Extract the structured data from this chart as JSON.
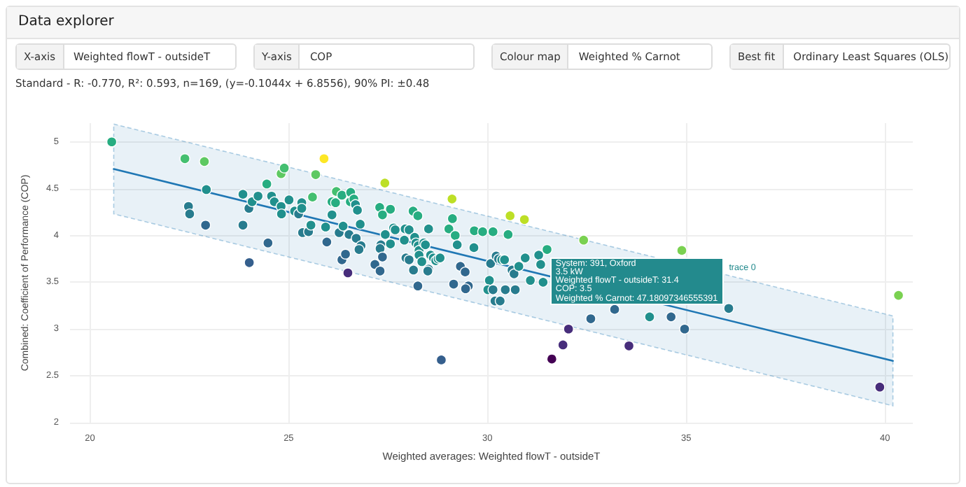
{
  "chart_data": {
    "type": "scatter",
    "title": "Data explorer",
    "subtitle": "Standard - R: -0.770, R²: 0.593, n=169, (y=-0.1044x + 6.8556), 90% PI: ±0.48",
    "xlabel": "Weighted averages: Weighted flowT - outsideT",
    "ylabel": "Combined: Coefficient of Performance (COP)",
    "annotations": [
      "X-axis",
      "Weighted flowT - outsideT",
      "Y-axis",
      "COP",
      "Colour map",
      "Weighted % Carnot",
      "Best fit",
      "Ordinary Least Squares (OLS)",
      {
        "text": "System: 391, Oxford\n3.5 kW\nWeighted flowT - outsideT: 31.4\nCOP: 3.5\nWeighted % Carnot: 47.18097346555391",
        "x": 31.4,
        "y": 3.5
      },
      "trace 0"
    ],
    "xlim": [
      19.5,
      40.7
    ],
    "ylim": [
      2,
      5.2
    ],
    "xticks": [
      20,
      25,
      30,
      35,
      40
    ],
    "yticks": [
      2,
      2.5,
      3,
      3.5,
      4,
      4.5,
      5
    ],
    "grid": true,
    "series": [
      {
        "marker": "circle",
        "x": [
          20.55,
          22.39,
          22.88,
          22.93,
          22.48,
          22.51,
          22.91,
          23.85,
          23.85,
          24.0,
          24.01,
          24.08,
          24.23,
          24.45,
          24.48,
          24.57,
          24.64,
          24.81,
          24.89,
          24.81,
          24.82,
          25.01,
          25.15,
          25.25,
          25.33,
          25.33,
          25.35,
          25.5,
          25.56,
          25.6,
          25.68,
          25.89,
          25.93,
          25.96,
          26.09,
          26.09,
          26.18,
          26.2,
          26.27,
          26.34,
          26.43,
          26.49,
          26.34,
          26.37,
          26.56,
          26.55,
          26.64,
          26.68,
          26.73,
          26.8,
          26.52,
          26.7,
          26.82,
          26.77,
          27.29,
          27.56,
          27.42,
          27.36,
          27.43,
          27.32,
          27.3,
          27.36,
          27.17,
          27.3,
          27.56,
          27.64,
          27.68,
          27.91,
          27.93,
          28.03,
          28.13,
          28.25,
          28.17,
          28.2,
          28.26,
          28.28,
          28.28,
          27.95,
          28.03,
          28.35,
          28.14,
          28.25,
          28.4,
          28.52,
          28.44,
          28.57,
          28.64,
          28.52,
          28.7,
          28.76,
          28.81,
          28.5,
          29.03,
          29.12,
          29.19,
          29.11,
          29.24,
          29.32,
          29.44,
          29.15,
          29.52,
          29.45,
          28.84,
          29.66,
          29.67,
          29.88,
          30.14,
          30.08,
          30.05,
          30.01,
          30.22,
          30.28,
          30.36,
          30.43,
          30.19,
          30.32,
          30.14,
          30.45,
          30.52,
          30.57,
          30.93,
          30.62,
          30.67,
          30.7,
          30.79,
          30.95,
          31.08,
          31.29,
          31.34,
          31.5,
          31.4,
          32.42,
          32.04,
          31.9,
          31.62,
          32.6,
          33.2,
          33.56,
          34.08,
          34.62,
          34.96,
          34.89,
          36.07,
          39.87,
          40.34
        ],
        "values": [
          5.0,
          4.82,
          4.79,
          4.49,
          4.31,
          4.23,
          4.11,
          4.44,
          4.11,
          4.29,
          3.71,
          4.36,
          4.42,
          4.55,
          3.92,
          4.42,
          4.36,
          4.66,
          4.72,
          4.31,
          4.23,
          4.38,
          4.26,
          4.23,
          4.35,
          4.29,
          4.03,
          4.04,
          4.11,
          4.41,
          4.65,
          4.82,
          4.09,
          3.93,
          4.22,
          4.36,
          4.35,
          4.47,
          4.03,
          3.74,
          3.8,
          3.6,
          4.43,
          4.1,
          4.46,
          4.36,
          4.39,
          4.33,
          4.27,
          4.12,
          4.01,
          3.97,
          3.89,
          3.85,
          4.3,
          4.28,
          4.56,
          4.22,
          4.01,
          3.9,
          3.86,
          3.77,
          3.69,
          3.62,
          3.91,
          4.08,
          4.06,
          3.95,
          4.07,
          4.06,
          4.26,
          4.21,
          3.98,
          3.92,
          3.89,
          3.84,
          3.79,
          3.76,
          3.74,
          3.72,
          3.63,
          3.46,
          3.92,
          4.07,
          3.9,
          3.79,
          3.76,
          3.64,
          3.73,
          3.75,
          3.76,
          3.62,
          4.07,
          4.18,
          4.0,
          4.39,
          3.9,
          3.67,
          3.61,
          3.48,
          3.46,
          3.43,
          2.67,
          3.87,
          4.05,
          4.04,
          4.04,
          3.7,
          3.52,
          3.42,
          3.78,
          3.75,
          3.74,
          3.74,
          3.3,
          3.3,
          3.42,
          3.42,
          4.01,
          4.21,
          4.17,
          3.63,
          3.59,
          3.42,
          3.67,
          3.76,
          3.52,
          3.79,
          3.69,
          3.85,
          3.5,
          3.95,
          3.0,
          2.83,
          2.68,
          3.11,
          3.21,
          2.82,
          3.13,
          3.13,
          3.0,
          3.84,
          3.22,
          2.38,
          3.36
        ],
        "colors": [
          "#27ad81",
          "#44bf70",
          "#5ec962",
          "#21908d",
          "#287c8e",
          "#287c8e",
          "#31688e",
          "#21908d",
          "#287c8e",
          "#287c8e",
          "#355f8d",
          "#21908d",
          "#21908d",
          "#27ad81",
          "#31688e",
          "#21908d",
          "#21908d",
          "#5ec962",
          "#44bf70",
          "#21908d",
          "#21908d",
          "#21908d",
          "#21908d",
          "#287c8e",
          "#21908d",
          "#21908d",
          "#287c8e",
          "#287c8e",
          "#21908d",
          "#44bf70",
          "#5ec962",
          "#fde725",
          "#21908d",
          "#31688e",
          "#21908d",
          "#27ad81",
          "#27ad81",
          "#44bf70",
          "#287c8e",
          "#31688e",
          "#31688e",
          "#472d7b",
          "#27ad81",
          "#21908d",
          "#27ad81",
          "#27ad81",
          "#27ad81",
          "#21908d",
          "#21908d",
          "#21908d",
          "#287c8e",
          "#287c8e",
          "#287c8e",
          "#287c8e",
          "#27ad81",
          "#27ad81",
          "#bddf26",
          "#27ad81",
          "#21908d",
          "#287c8e",
          "#287c8e",
          "#31688e",
          "#31688e",
          "#31688e",
          "#21908d",
          "#21908d",
          "#21908d",
          "#21908d",
          "#21908d",
          "#21908d",
          "#27ad81",
          "#27ad81",
          "#21908d",
          "#21908d",
          "#21908d",
          "#21908d",
          "#21908d",
          "#287c8e",
          "#287c8e",
          "#21908d",
          "#287c8e",
          "#31688e",
          "#21908d",
          "#21908d",
          "#21908d",
          "#21908d",
          "#21908d",
          "#287c8e",
          "#21908d",
          "#21908d",
          "#21908d",
          "#287c8e",
          "#27ad81",
          "#27ad81",
          "#27ad81",
          "#bddf26",
          "#21908d",
          "#31688e",
          "#31688e",
          "#31688e",
          "#31688e",
          "#31688e",
          "#355f8d",
          "#21908d",
          "#27ad81",
          "#27ad81",
          "#27ad81",
          "#287c8e",
          "#21908d",
          "#21908d",
          "#287c8e",
          "#287c8e",
          "#21908d",
          "#21908d",
          "#287c8e",
          "#287c8e",
          "#287c8e",
          "#287c8e",
          "#27ad81",
          "#bddf26",
          "#bddf26",
          "#287c8e",
          "#287c8e",
          "#287c8e",
          "#21908d",
          "#21908d",
          "#21908d",
          "#21908d",
          "#21908d",
          "#27ad81",
          "#21908d",
          "#7ad151",
          "#472d7b",
          "#472d7b",
          "#440154",
          "#31688e",
          "#31688e",
          "#472d7b",
          "#21908d",
          "#31688e",
          "#31688e",
          "#7ad151",
          "#287c8e",
          "#472d7b",
          "#7ad151"
        ]
      },
      {
        "type": "line",
        "marker": "none",
        "color": "#1f77b4",
        "x": [
          20.6,
          40.2
        ],
        "values": [
          4.71,
          2.66
        ],
        "lower": [
          4.23,
          2.18
        ],
        "upper": [
          5.19,
          3.14
        ]
      }
    ]
  }
}
